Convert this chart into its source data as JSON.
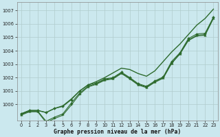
{
  "title": "Graphe pression niveau de la mer (hPa)",
  "bg_color": "#cbe8ee",
  "grid_color": "#b0cccc",
  "line_color": "#2d6a2d",
  "marker_color": "#2d6a2d",
  "xlim": [
    -0.5,
    23.5
  ],
  "ylim": [
    998.8,
    1007.6
  ],
  "yticks": [
    1000,
    1001,
    1002,
    1003,
    1004,
    1005,
    1006,
    1007
  ],
  "xticks": [
    0,
    1,
    2,
    3,
    4,
    5,
    6,
    7,
    8,
    9,
    10,
    11,
    12,
    13,
    14,
    15,
    16,
    17,
    18,
    19,
    20,
    21,
    22,
    23
  ],
  "series": [
    {
      "x": [
        0,
        1,
        2,
        3,
        4,
        5,
        6,
        7,
        8,
        9,
        10,
        11,
        12,
        13,
        14,
        15,
        16,
        17,
        18,
        19,
        20,
        21,
        22,
        23
      ],
      "y": [
        999.3,
        999.55,
        999.55,
        999.4,
        999.7,
        999.9,
        1000.4,
        1001.0,
        1001.45,
        1001.7,
        1002.0,
        1002.35,
        1002.7,
        1002.6,
        1002.3,
        1002.1,
        1002.5,
        1003.2,
        1003.9,
        1004.5,
        1005.2,
        1005.9,
        1006.4,
        1007.1
      ],
      "marker": null,
      "markersize": 0,
      "linewidth": 1.0
    },
    {
      "x": [
        0,
        1,
        2,
        3,
        4,
        5,
        6,
        7,
        8,
        9,
        10,
        11,
        12,
        13,
        14,
        15,
        16,
        17,
        18,
        19,
        20,
        21,
        22,
        23
      ],
      "y": [
        999.3,
        999.55,
        999.55,
        999.4,
        999.7,
        999.85,
        1000.35,
        1001.0,
        1001.45,
        1001.6,
        1001.9,
        1002.0,
        1002.4,
        1002.0,
        1001.55,
        1001.35,
        1001.75,
        1002.05,
        1003.2,
        1003.85,
        1004.9,
        1005.25,
        1005.3,
        1006.5
      ],
      "marker": "D",
      "markersize": 2.0,
      "linewidth": 0.8
    },
    {
      "x": [
        0,
        1,
        2,
        3,
        4,
        5,
        6,
        7,
        8,
        9,
        10,
        11,
        12,
        13,
        14,
        15,
        16,
        17,
        18,
        19,
        20,
        21,
        22,
        23
      ],
      "y": [
        999.25,
        999.5,
        999.5,
        998.75,
        999.05,
        999.3,
        1000.1,
        1000.85,
        1001.35,
        1001.55,
        1001.85,
        1001.95,
        1002.35,
        1001.95,
        1001.5,
        1001.3,
        1001.7,
        1002.0,
        1003.1,
        1003.8,
        1004.8,
        1005.15,
        1005.2,
        1006.45
      ],
      "marker": "^",
      "markersize": 2.5,
      "linewidth": 0.8
    },
    {
      "x": [
        0,
        1,
        2,
        3,
        4,
        5,
        6,
        7,
        8,
        9,
        10,
        11,
        12,
        13,
        14,
        15,
        16,
        17,
        18,
        19,
        20,
        21,
        22,
        23
      ],
      "y": [
        999.2,
        999.45,
        999.45,
        998.65,
        998.95,
        999.2,
        999.95,
        1000.75,
        1001.3,
        1001.5,
        1001.8,
        1001.9,
        1002.3,
        1001.9,
        1001.45,
        1001.25,
        1001.65,
        1001.95,
        1003.05,
        1003.75,
        1004.75,
        1005.1,
        1005.15,
        1006.4
      ],
      "marker": "s",
      "markersize": 1.8,
      "linewidth": 0.8
    }
  ],
  "title_fontsize": 5.8,
  "tick_fontsize": 4.8,
  "xlabel_fontsize": 5.8
}
